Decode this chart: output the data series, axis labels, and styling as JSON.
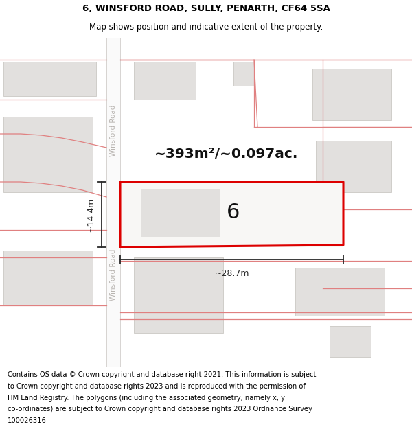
{
  "title": "6, WINSFORD ROAD, SULLY, PENARTH, CF64 5SA",
  "subtitle": "Map shows position and indicative extent of the property.",
  "footer_lines": [
    "Contains OS data © Crown copyright and database right 2021. This information is subject",
    "to Crown copyright and database rights 2023 and is reproduced with the permission of",
    "HM Land Registry. The polygons (including the associated geometry, namely x, y",
    "co-ordinates) are subject to Crown copyright and database rights 2023 Ordnance Survey",
    "100026316."
  ],
  "map_bg": "#f2f1ef",
  "road_fill": "#fafafa",
  "building_fill": "#e2e0de",
  "building_edge": "#cac8c4",
  "plot_outline_color": "#dd0000",
  "plot_fill_color": "#f8f7f5",
  "street_label": "Winsford Road",
  "area_label": "~393m²/~0.097ac.",
  "number_label": "6",
  "width_label": "~28.7m",
  "height_label": "~14.4m",
  "dim_line_color": "#2a2a2a",
  "label_color": "#111111",
  "pink_line_color": "#e08080",
  "title_fontsize": 9.5,
  "subtitle_fontsize": 8.5,
  "footer_fontsize": 7.2,
  "street_label_color": "#b8b4b0",
  "parcel_line_color": "#e09090"
}
